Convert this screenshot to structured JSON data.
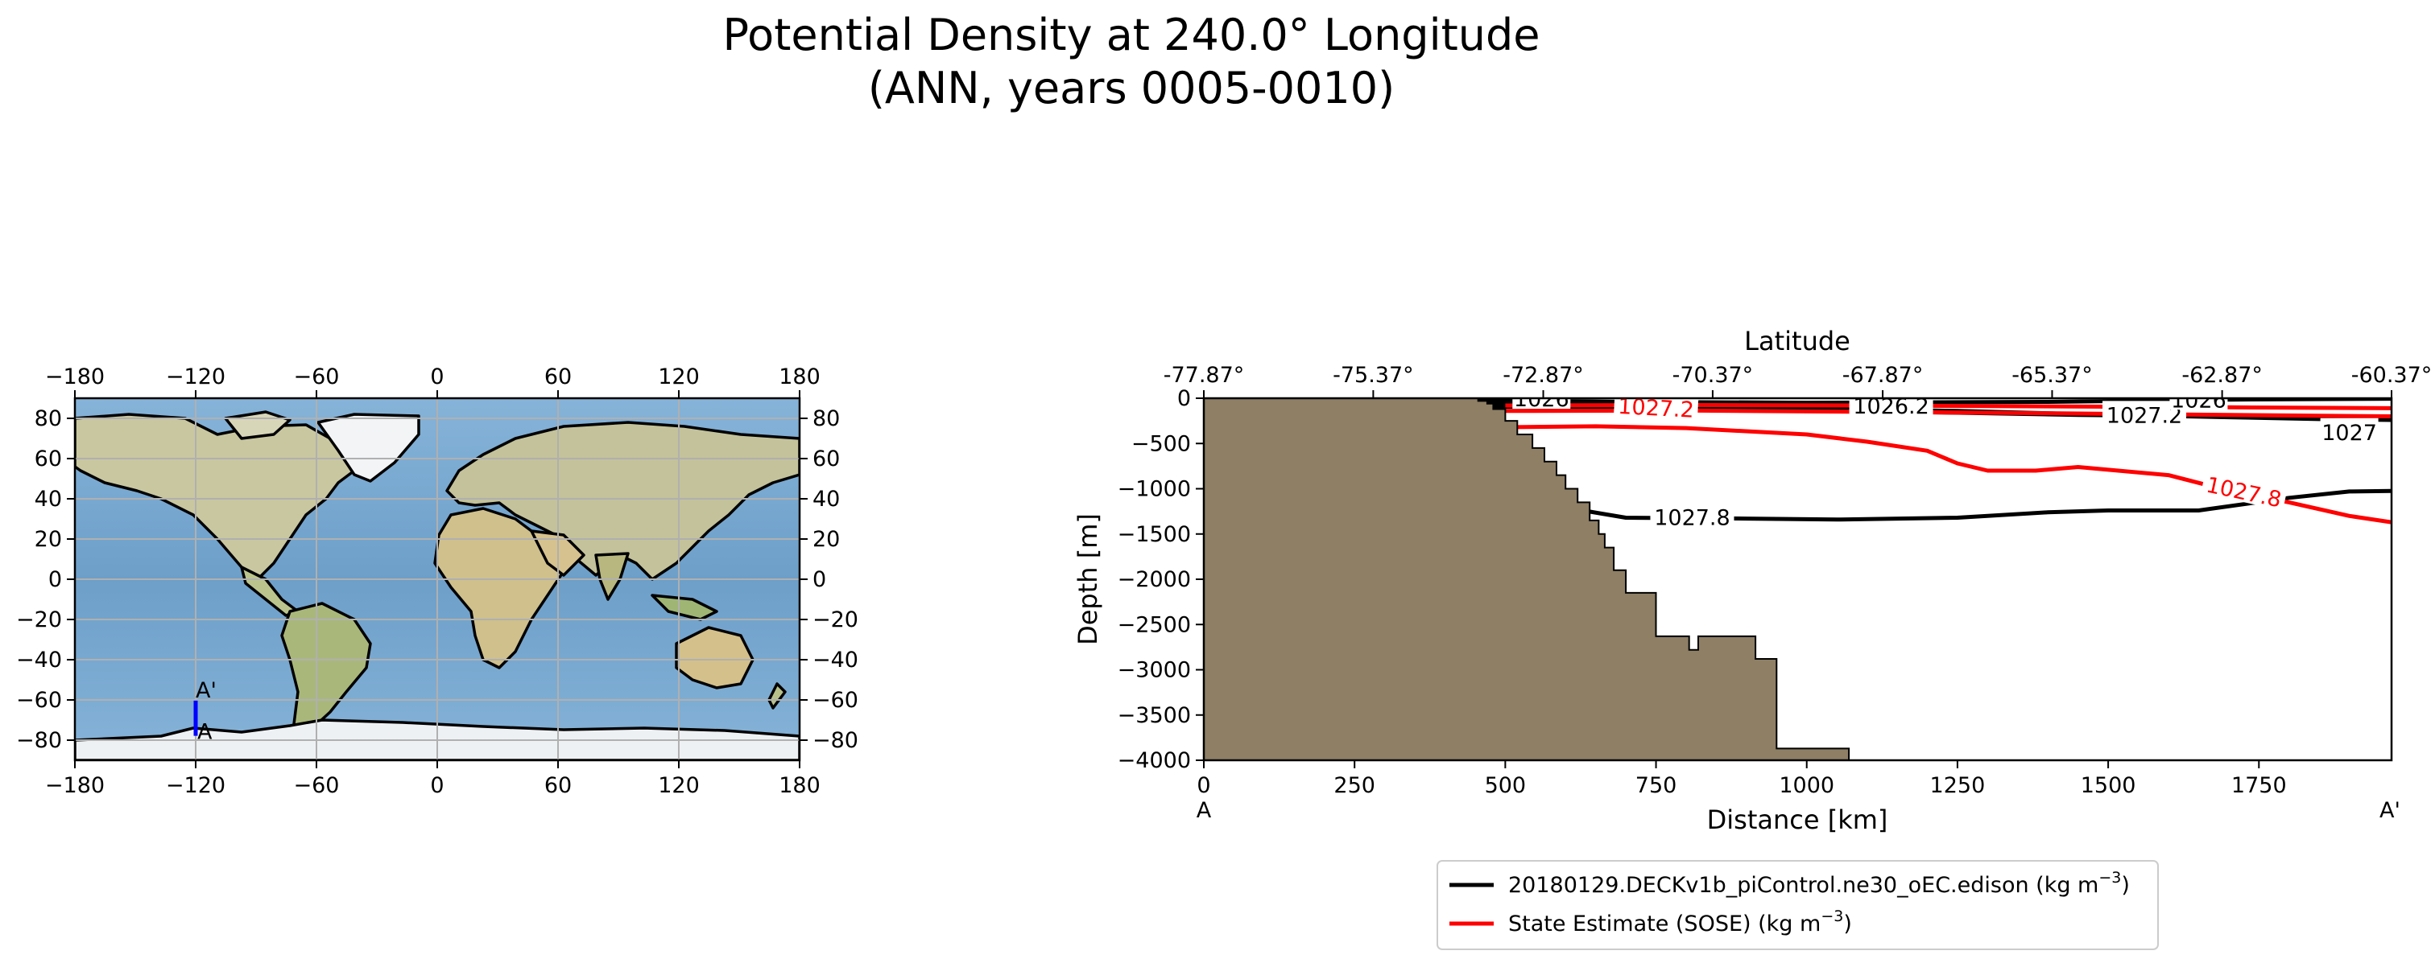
{
  "title": {
    "line1": "Potential Density at 240.0° Longitude",
    "line2": "(ANN, years 0005-0010)"
  },
  "chart_data": [
    {
      "type": "map",
      "projection": "plate-carree",
      "xlim": [
        -180,
        180
      ],
      "ylim": [
        -90,
        90
      ],
      "xticks": [
        "−180",
        "−120",
        "−60",
        "0",
        "60",
        "120",
        "180"
      ],
      "yticks": [
        "−80",
        "−60",
        "−40",
        "−20",
        "0",
        "20",
        "40",
        "60",
        "80"
      ],
      "grid": true,
      "transect": {
        "lon": -120,
        "lat_start": -77.87,
        "lat_end": -60.37,
        "start_label": "A",
        "end_label": "A'",
        "color": "#0000ff"
      }
    },
    {
      "type": "contour-section",
      "xlabel": "Distance [km]",
      "ylabel": "Depth [m]",
      "top_xlabel": "Latitude",
      "xlim": [
        0,
        1970
      ],
      "ylim": [
        -4000,
        0
      ],
      "xticks": [
        "0",
        "250",
        "500",
        "750",
        "1000",
        "1250",
        "1500",
        "1750"
      ],
      "xtick_values": [
        0,
        250,
        500,
        750,
        1000,
        1250,
        1500,
        1750
      ],
      "yticks": [
        "0",
        "−500",
        "−1000",
        "−1500",
        "−2000",
        "−2500",
        "−3000",
        "−3500",
        "−4000"
      ],
      "ytick_values": [
        0,
        -500,
        -1000,
        -1500,
        -2000,
        -2500,
        -3000,
        -3500,
        -4000
      ],
      "top_ticks": [
        "-77.87°",
        "-75.37°",
        "-72.87°",
        "-70.37°",
        "-67.87°",
        "-65.37°",
        "-62.87°",
        "-60.37°"
      ],
      "top_tick_values": [
        0,
        281,
        563,
        844,
        1126,
        1407,
        1689,
        1970
      ],
      "endpoint_labels": {
        "start": "A",
        "end": "A'"
      },
      "land_color": "#8e7f65",
      "bathymetry": [
        [
          0,
          -4000
        ],
        [
          0,
          0
        ],
        [
          455,
          0
        ],
        [
          455,
          -30
        ],
        [
          470,
          -30
        ],
        [
          470,
          -60
        ],
        [
          480,
          -60
        ],
        [
          480,
          -120
        ],
        [
          500,
          -120
        ],
        [
          500,
          -250
        ],
        [
          520,
          -250
        ],
        [
          520,
          -400
        ],
        [
          545,
          -400
        ],
        [
          545,
          -550
        ],
        [
          565,
          -550
        ],
        [
          565,
          -700
        ],
        [
          585,
          -700
        ],
        [
          585,
          -850
        ],
        [
          600,
          -850
        ],
        [
          600,
          -1000
        ],
        [
          620,
          -1000
        ],
        [
          620,
          -1150
        ],
        [
          640,
          -1150
        ],
        [
          640,
          -1350
        ],
        [
          655,
          -1350
        ],
        [
          655,
          -1500
        ],
        [
          665,
          -1500
        ],
        [
          665,
          -1650
        ],
        [
          680,
          -1650
        ],
        [
          680,
          -1900
        ],
        [
          700,
          -1900
        ],
        [
          700,
          -2150
        ],
        [
          750,
          -2150
        ],
        [
          750,
          -2630
        ],
        [
          805,
          -2630
        ],
        [
          805,
          -2780
        ],
        [
          820,
          -2780
        ],
        [
          820,
          -2630
        ],
        [
          915,
          -2630
        ],
        [
          915,
          -2880
        ],
        [
          950,
          -2880
        ],
        [
          950,
          -3870
        ],
        [
          1070,
          -3870
        ],
        [
          1070,
          -4000
        ]
      ],
      "series": [
        {
          "name": "20180129.DECKv1b_piControl.ne30_oEC.edison (kg m⁻³)",
          "color": "#000000",
          "contours": [
            {
              "level": "1026",
              "points": [
                [
                  455,
                  -20
                ],
                [
                  700,
                  -40
                ],
                [
                  1000,
                  -50
                ],
                [
                  1400,
                  -40
                ],
                [
                  1700,
                  -15
                ],
                [
                  1970,
                  -5
                ]
              ]
            },
            {
              "level": "1027",
              "points": [
                [
                  455,
                  -60
                ],
                [
                  700,
                  -80
                ],
                [
                  1000,
                  -110
                ],
                [
                  1250,
                  -140
                ],
                [
                  1450,
                  -175
                ],
                [
                  1700,
                  -210
                ],
                [
                  1850,
                  -230
                ],
                [
                  1970,
                  -240
                ]
              ]
            },
            {
              "level": "1027.2",
              "points": [
                [
                  455,
                  -90
                ],
                [
                  700,
                  -110
                ],
                [
                  1000,
                  -140
                ],
                [
                  1250,
                  -160
                ],
                [
                  1450,
                  -185
                ],
                [
                  1700,
                  -200
                ],
                [
                  1970,
                  -215
                ]
              ]
            },
            {
              "level": "1027.8",
              "points": [
                [
                  620,
                  -1230
                ],
                [
                  700,
                  -1320
                ],
                [
                  900,
                  -1330
                ],
                [
                  1050,
                  -1340
                ],
                [
                  1250,
                  -1320
                ],
                [
                  1400,
                  -1260
                ],
                [
                  1500,
                  -1240
                ],
                [
                  1650,
                  -1240
                ],
                [
                  1800,
                  -1100
                ],
                [
                  1900,
                  -1030
                ],
                [
                  1970,
                  -1025
                ]
              ]
            }
          ]
        },
        {
          "name": "State Estimate (SOSE) (kg m⁻³)",
          "color": "#ff0000",
          "contours": [
            {
              "level": "1027",
              "points": [
                [
                  500,
                  -80
                ],
                [
                  800,
                  -75
                ],
                [
                  1100,
                  -80
                ],
                [
                  1400,
                  -90
                ],
                [
                  1700,
                  -100
                ],
                [
                  1970,
                  -110
                ]
              ]
            },
            {
              "level": "1027.2",
              "points": [
                [
                  500,
                  -140
                ],
                [
                  800,
                  -135
                ],
                [
                  1100,
                  -150
                ],
                [
                  1400,
                  -165
                ],
                [
                  1700,
                  -185
                ],
                [
                  1970,
                  -200
                ]
              ]
            },
            {
              "level": "1027.8",
              "points": [
                [
                  500,
                  -320
                ],
                [
                  650,
                  -310
                ],
                [
                  800,
                  -330
                ],
                [
                  1000,
                  -400
                ],
                [
                  1100,
                  -480
                ],
                [
                  1200,
                  -580
                ],
                [
                  1250,
                  -720
                ],
                [
                  1300,
                  -800
                ],
                [
                  1380,
                  -800
                ],
                [
                  1450,
                  -760
                ],
                [
                  1600,
                  -850
                ],
                [
                  1700,
                  -1020
                ],
                [
                  1800,
                  -1150
                ],
                [
                  1900,
                  -1300
                ],
                [
                  1970,
                  -1370
                ]
              ]
            }
          ]
        }
      ],
      "contour_labels": [
        {
          "text": "1026",
          "x": 560,
          "y": -10,
          "color": "#000000"
        },
        {
          "text": "1027.2",
          "x": 750,
          "y": -110,
          "color": "#ff0000",
          "rotate": 3
        },
        {
          "text": "1026.2",
          "x": 1140,
          "y": -90,
          "color": "#000000"
        },
        {
          "text": "1027.2",
          "x": 1560,
          "y": -190,
          "color": "#000000"
        },
        {
          "text": "1026",
          "x": 1650,
          "y": -20,
          "color": "#000000"
        },
        {
          "text": "1027",
          "x": 1900,
          "y": -380,
          "color": "#000000"
        },
        {
          "text": "1027.8",
          "x": 810,
          "y": -1320,
          "color": "#000000"
        },
        {
          "text": "1027.8",
          "x": 1725,
          "y": -1040,
          "color": "#ff0000",
          "rotate": 12
        }
      ],
      "legend": {
        "placement": "bottom-center",
        "entries": [
          {
            "label": "20180129.DECKv1b_piControl.ne30_oEC.edison (kg m",
            "sup": "−3",
            "suffix": ")",
            "color": "#000000"
          },
          {
            "label": "State Estimate (SOSE) (kg m",
            "sup": "−3",
            "suffix": ")",
            "color": "#ff0000"
          }
        ]
      }
    }
  ]
}
